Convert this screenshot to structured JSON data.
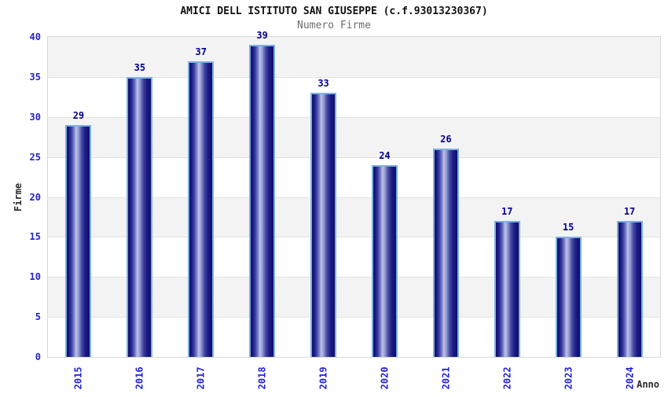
{
  "chart_data": {
    "type": "bar",
    "title": "AMICI DELL ISTITUTO SAN GIUSEPPE (c.f.93013230367)",
    "subtitle": "Numero Firme",
    "xlabel": "Anno",
    "ylabel": "Firme",
    "categories": [
      "2015",
      "2016",
      "2017",
      "2018",
      "2019",
      "2020",
      "2021",
      "2022",
      "2023",
      "2024"
    ],
    "values": [
      29,
      35,
      37,
      39,
      33,
      24,
      26,
      17,
      15,
      17
    ],
    "ylim": [
      0,
      40
    ],
    "ytick_step": 5,
    "legend": "none",
    "grid": "horizontal-bands",
    "colors": {
      "bar_dark": "#0e0e6d",
      "bar_highlight": "#bdc1ea",
      "bar_border": "#7cb1e3",
      "tick_label": "#2323cd",
      "value_label": "#00008b",
      "band_gray": "#f3f3f3",
      "band_white": "#ffffff",
      "grid_line": "#e2e2e2",
      "plot_border": "#d8d8d8",
      "title_color": "#111111",
      "subtitle_color": "#6e6e6e",
      "axis_title_color": "#2b2b2b"
    }
  }
}
